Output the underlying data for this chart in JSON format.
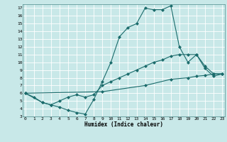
{
  "xlabel": "Humidex (Indice chaleur)",
  "bg_color": "#c8e8e8",
  "grid_color": "#ffffff",
  "line_color": "#1a6b6b",
  "xlim": [
    0,
    23
  ],
  "ylim": [
    3,
    17
  ],
  "xticks": [
    0,
    1,
    2,
    3,
    4,
    5,
    6,
    7,
    8,
    9,
    10,
    11,
    12,
    13,
    14,
    15,
    16,
    17,
    18,
    19,
    20,
    21,
    22,
    23
  ],
  "yticks": [
    3,
    4,
    5,
    6,
    7,
    8,
    9,
    10,
    11,
    12,
    13,
    14,
    15,
    16,
    17
  ],
  "line1_x": [
    0,
    1,
    2,
    3,
    4,
    5,
    6,
    7,
    8,
    9,
    10,
    11,
    12,
    13,
    14,
    15,
    16,
    17,
    18,
    19,
    20,
    21,
    22,
    23
  ],
  "line1_y": [
    6.0,
    5.5,
    4.8,
    4.5,
    4.2,
    3.8,
    3.5,
    3.3,
    5.2,
    7.5,
    10.0,
    13.3,
    14.5,
    15.0,
    17.0,
    16.8,
    16.8,
    17.3,
    12.0,
    10.0,
    11.0,
    9.2,
    8.2,
    8.5
  ],
  "line2_x": [
    0,
    2,
    3,
    4,
    5,
    6,
    7,
    8,
    9,
    10,
    11,
    12,
    13,
    14,
    15,
    16,
    17,
    18,
    19,
    20,
    21,
    22,
    23
  ],
  "line2_y": [
    6.0,
    4.8,
    4.5,
    5.0,
    5.5,
    5.8,
    5.5,
    5.8,
    7.0,
    7.5,
    8.0,
    8.5,
    9.0,
    9.5,
    10.0,
    10.3,
    10.8,
    11.0,
    11.0,
    11.0,
    9.5,
    8.5,
    8.5
  ],
  "line3_x": [
    0,
    9,
    14,
    17,
    19,
    20,
    21,
    22,
    23
  ],
  "line3_y": [
    6.0,
    6.2,
    7.0,
    7.8,
    8.0,
    8.2,
    8.3,
    8.5,
    8.5
  ],
  "markersize": 2.5
}
